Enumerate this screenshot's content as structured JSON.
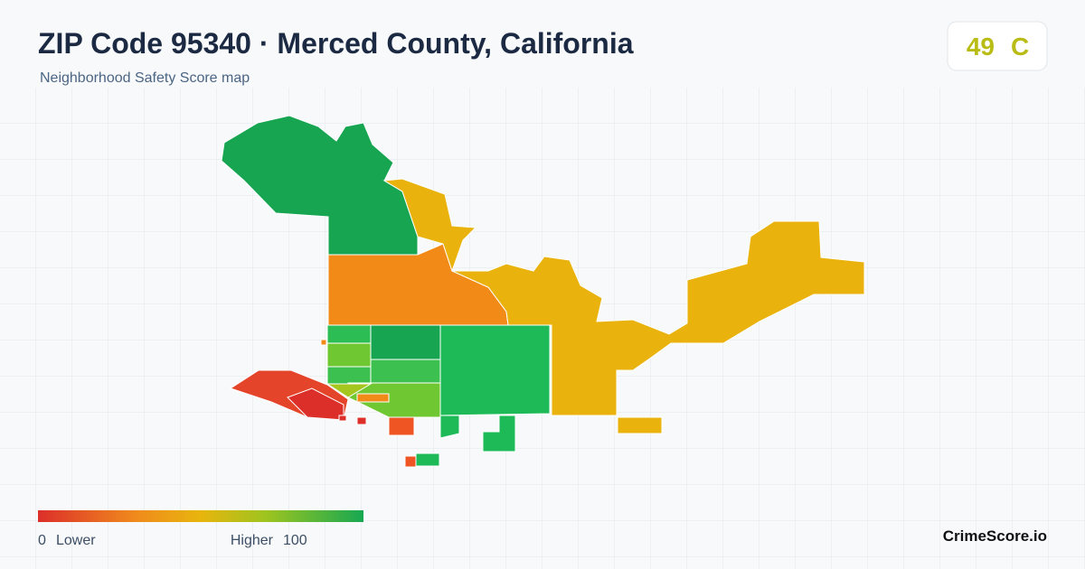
{
  "header": {
    "title": "ZIP Code 95340 · Merced County, California",
    "subtitle": "Neighborhood Safety Score map"
  },
  "score": {
    "value": 49,
    "grade": "C"
  },
  "legend": {
    "min": 0,
    "min_label": "Lower",
    "max_label": "Higher",
    "max": 100
  },
  "brand": "CrimeScore.io"
}
